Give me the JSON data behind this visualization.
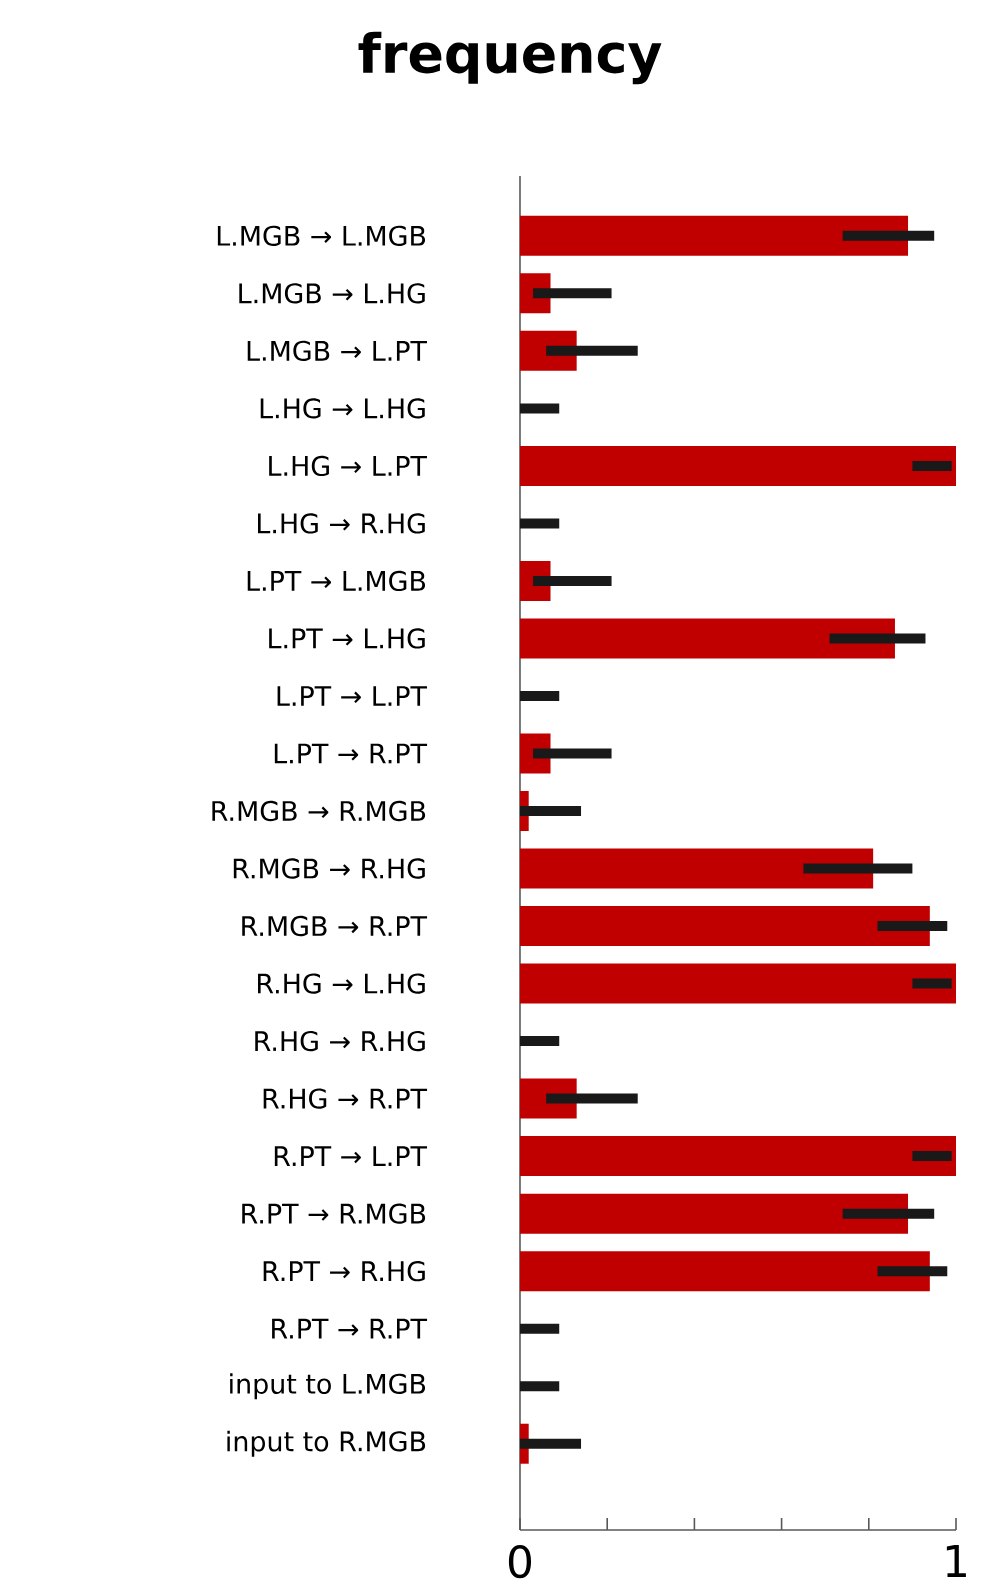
{
  "chart_data": {
    "type": "bar",
    "orientation": "horizontal",
    "title": "frequency",
    "categories": [
      "L.MGB → L.MGB",
      "L.MGB → L.HG",
      "L.MGB → L.PT",
      "L.HG → L.HG",
      "L.HG → L.PT",
      "L.HG → R.HG",
      "L.PT → L.MGB",
      "L.PT → L.HG",
      "L.PT → L.PT",
      "L.PT → R.PT",
      "R.MGB → R.MGB",
      "R.MGB → R.HG",
      "R.MGB → R.PT",
      "R.HG → L.HG",
      "R.HG → R.HG",
      "R.HG → R.PT",
      "R.PT → L.PT",
      "R.PT → R.MGB",
      "R.PT → R.HG",
      "R.PT → R.PT",
      "input to L.MGB",
      "input to R.MGB"
    ],
    "values": [
      0.89,
      0.07,
      0.13,
      0,
      1,
      0,
      0.07,
      0.86,
      0,
      0.07,
      0.02,
      0.81,
      0.94,
      1,
      0,
      0.13,
      1,
      0.89,
      0.94,
      0,
      0,
      0.02
    ],
    "errors": [
      [
        0.74,
        0.95
      ],
      [
        0.03,
        0.21
      ],
      [
        0.06,
        0.27
      ],
      [
        0,
        0.09
      ],
      [
        0.9,
        0.99
      ],
      [
        0,
        0.09
      ],
      [
        0.03,
        0.21
      ],
      [
        0.71,
        0.93
      ],
      [
        0,
        0.09
      ],
      [
        0.03,
        0.21
      ],
      [
        0,
        0.14
      ],
      [
        0.65,
        0.9
      ],
      [
        0.82,
        0.98
      ],
      [
        0.9,
        0.99
      ],
      [
        0,
        0.09
      ],
      [
        0.06,
        0.27
      ],
      [
        0.9,
        0.99
      ],
      [
        0.74,
        0.95
      ],
      [
        0.82,
        0.98
      ],
      [
        0,
        0.09
      ],
      [
        0,
        0.09
      ],
      [
        0,
        0.14
      ]
    ],
    "color": "#c00000",
    "xlim": [
      0,
      1
    ],
    "xticks": [
      0,
      {
        "value": 0.2,
        "label": null
      },
      {
        "value": 0.4,
        "label": null
      },
      {
        "value": 0.6,
        "label": null
      },
      {
        "value": 0.8,
        "label": null
      },
      1
    ],
    "grid": false
  }
}
